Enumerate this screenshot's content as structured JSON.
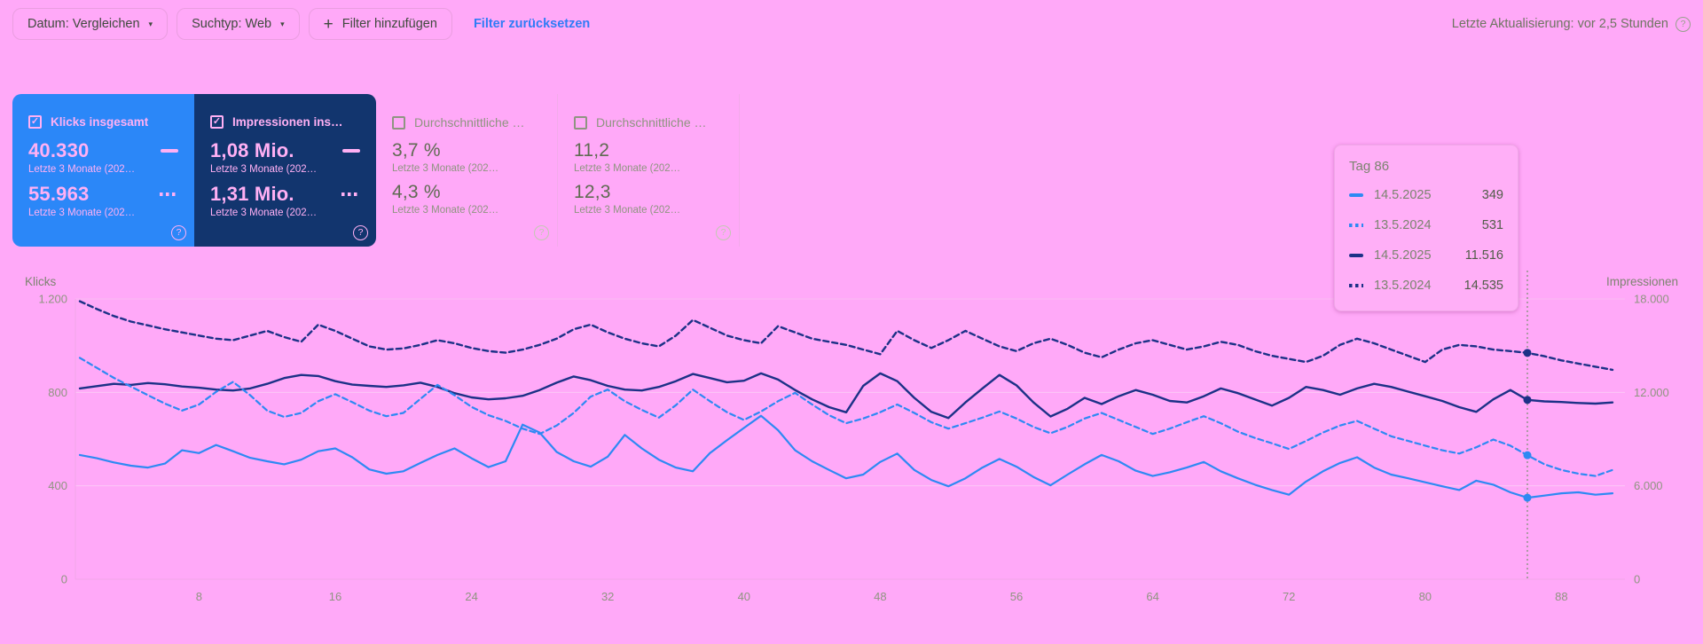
{
  "icons": {
    "caret": "▾",
    "plus": "+",
    "help": "?",
    "check": "✓"
  },
  "colors": {
    "page_bg": "#ffa9f8",
    "card_blue": "#2b87f8",
    "card_navy": "#12356e",
    "line_blue": "#2e89f3",
    "line_navy": "#1c3187",
    "link_blue": "#2f7cf6",
    "grid_top": "#f9bdf2",
    "grid_mid": "#fdc9f7",
    "axis": "#f0a7e8",
    "marker_line": "#8b9383"
  },
  "topbar": {
    "chips": [
      {
        "label": "Datum: Vergleichen"
      },
      {
        "label": "Suchtyp: Web"
      },
      {
        "label": "Filter hinzufügen"
      }
    ],
    "reset_link": "Filter zurücksetzen",
    "last_update": "Letzte Aktualisierung: vor 2,5 Stunden"
  },
  "cards": [
    {
      "title": "Klicks insgesamt",
      "checked": true,
      "style": "blue",
      "rows": [
        {
          "value": "40.330",
          "swatch": "solid",
          "caption": "Letzte 3 Monate (202…"
        },
        {
          "value": "55.963",
          "swatch": "dashed",
          "caption": "Letzte 3 Monate (202…"
        }
      ]
    },
    {
      "title": "Impressionen ins…",
      "checked": true,
      "style": "navy",
      "rows": [
        {
          "value": "1,08 Mio.",
          "swatch": "solid",
          "caption": "Letzte 3 Monate (202…"
        },
        {
          "value": "1,31 Mio.",
          "swatch": "dashed",
          "caption": "Letzte 3 Monate (202…"
        }
      ]
    },
    {
      "title": "Durchschnittliche …",
      "checked": false,
      "style": "plain",
      "rows": [
        {
          "value": "3,7 %",
          "caption": "Letzte 3 Monate (202…"
        },
        {
          "value": "4,3 %",
          "caption": "Letzte 3 Monate (202…"
        }
      ]
    },
    {
      "title": "Durchschnittliche …",
      "checked": false,
      "style": "plain",
      "rows": [
        {
          "value": "11,2",
          "caption": "Letzte 3 Monate (202…"
        },
        {
          "value": "12,3",
          "caption": "Letzte 3 Monate (202…"
        }
      ]
    }
  ],
  "tooltip": {
    "title": "Tag 86",
    "rows": [
      {
        "color": "line_blue",
        "style": "solid",
        "date": "14.5.2025",
        "value": "349"
      },
      {
        "color": "line_blue",
        "style": "dashed",
        "date": "13.5.2024",
        "value": "531"
      },
      {
        "color": "line_navy",
        "style": "solid",
        "date": "14.5.2025",
        "value": "11.516"
      },
      {
        "color": "line_navy",
        "style": "dashed",
        "date": "13.5.2024",
        "value": "14.535"
      }
    ]
  },
  "chart_data": {
    "type": "line",
    "x_range": [
      1,
      91
    ],
    "x_ticks": [
      "8",
      "16",
      "24",
      "32",
      "40",
      "48",
      "56",
      "64",
      "72",
      "80",
      "88"
    ],
    "marker_day": 86,
    "left_axis": {
      "title": "Klicks",
      "max": 1200,
      "ticks": [
        {
          "label": "1.200",
          "value": 1200
        },
        {
          "label": "800",
          "value": 800
        },
        {
          "label": "400",
          "value": 400
        },
        {
          "label": "0",
          "value": 0
        }
      ]
    },
    "right_axis": {
      "title": "Impressionen",
      "max": 18000,
      "ticks": [
        {
          "label": "18.000",
          "value": 18000
        },
        {
          "label": "12.000",
          "value": 12000
        },
        {
          "label": "6.000",
          "value": 6000
        },
        {
          "label": "0",
          "value": 0
        }
      ]
    },
    "series": [
      {
        "name": "Klicks 14.5.2025",
        "axis": "left",
        "style": "solid",
        "color_key": "line_blue",
        "values": [
          532,
          518,
          500,
          486,
          478,
          495,
          552,
          540,
          575,
          548,
          520,
          505,
          492,
          512,
          548,
          560,
          522,
          470,
          452,
          462,
          498,
          532,
          560,
          518,
          480,
          505,
          662,
          628,
          545,
          505,
          482,
          525,
          618,
          560,
          512,
          478,
          462,
          540,
          595,
          648,
          700,
          638,
          552,
          505,
          468,
          432,
          448,
          502,
          538,
          468,
          425,
          398,
          432,
          478,
          515,
          482,
          438,
          402,
          448,
          492,
          532,
          505,
          465,
          442,
          458,
          478,
          502,
          462,
          432,
          405,
          382,
          362,
          418,
          462,
          498,
          522,
          478,
          448,
          432,
          415,
          398,
          382,
          422,
          405,
          372,
          349,
          358,
          368,
          372,
          362,
          368
        ]
      },
      {
        "name": "Klicks 13.5.2024",
        "axis": "left",
        "style": "dashed",
        "color_key": "line_blue",
        "values": [
          948,
          905,
          862,
          825,
          788,
          752,
          722,
          748,
          802,
          845,
          788,
          722,
          695,
          712,
          762,
          792,
          758,
          722,
          698,
          712,
          772,
          832,
          788,
          738,
          702,
          678,
          645,
          622,
          658,
          712,
          782,
          812,
          762,
          725,
          692,
          745,
          812,
          762,
          715,
          682,
          718,
          762,
          798,
          748,
          702,
          668,
          688,
          715,
          748,
          712,
          672,
          645,
          668,
          692,
          718,
          688,
          652,
          625,
          652,
          688,
          712,
          682,
          652,
          622,
          645,
          672,
          698,
          668,
          632,
          605,
          582,
          558,
          592,
          628,
          658,
          678,
          645,
          612,
          592,
          572,
          552,
          538,
          565,
          598,
          572,
          531,
          492,
          468,
          452,
          442,
          468
        ]
      },
      {
        "name": "Impressionen 14.5.2025",
        "axis": "right",
        "style": "solid",
        "color_key": "line_navy",
        "values": [
          12250,
          12400,
          12550,
          12480,
          12600,
          12520,
          12380,
          12300,
          12180,
          12120,
          12250,
          12550,
          12920,
          13120,
          13050,
          12720,
          12500,
          12420,
          12350,
          12450,
          12620,
          12350,
          11950,
          11680,
          11550,
          11620,
          11780,
          12150,
          12620,
          13020,
          12780,
          12420,
          12180,
          12120,
          12350,
          12720,
          13180,
          12920,
          12650,
          12750,
          13220,
          12820,
          12150,
          11550,
          11050,
          10720,
          12420,
          13220,
          12720,
          11650,
          10750,
          10350,
          11350,
          12250,
          13120,
          12450,
          11350,
          10450,
          10950,
          11650,
          11250,
          11750,
          12150,
          11850,
          11450,
          11350,
          11750,
          12250,
          11950,
          11550,
          11150,
          11650,
          12350,
          12150,
          11850,
          12250,
          12550,
          12350,
          12050,
          11750,
          11450,
          11050,
          10750,
          11550,
          12150,
          11516,
          11420,
          11380,
          11320,
          11280,
          11350
        ]
      },
      {
        "name": "Impressionen 13.5.2024",
        "axis": "right",
        "style": "dashed",
        "color_key": "line_navy",
        "values": [
          17850,
          17350,
          16900,
          16550,
          16300,
          16050,
          15850,
          15650,
          15450,
          15350,
          15650,
          15950,
          15550,
          15250,
          16350,
          15950,
          15450,
          14950,
          14750,
          14820,
          15050,
          15350,
          15150,
          14850,
          14650,
          14550,
          14750,
          15050,
          15450,
          16050,
          16350,
          15850,
          15450,
          15150,
          14950,
          15650,
          16650,
          16150,
          15650,
          15350,
          15150,
          16250,
          15850,
          15450,
          15250,
          15050,
          14750,
          14450,
          15950,
          15350,
          14850,
          15350,
          15950,
          15450,
          14950,
          14650,
          15150,
          15450,
          15050,
          14550,
          14250,
          14750,
          15150,
          15350,
          15050,
          14750,
          14950,
          15250,
          15050,
          14650,
          14350,
          14150,
          13950,
          14350,
          15050,
          15450,
          15150,
          14750,
          14350,
          13950,
          14750,
          15050,
          14950,
          14750,
          14650,
          14535,
          14320,
          14050,
          13850,
          13650,
          13450
        ]
      }
    ]
  }
}
